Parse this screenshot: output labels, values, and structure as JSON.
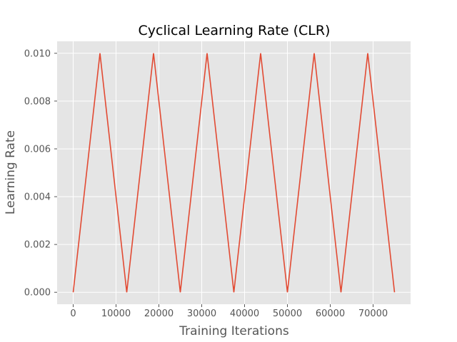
{
  "chart_data": {
    "type": "line",
    "title": "Cyclical Learning Rate (CLR)",
    "xlabel": "Training Iterations",
    "ylabel": "Learning Rate",
    "xlim": [
      -3750,
      78750
    ],
    "ylim": [
      -0.0005,
      0.0105
    ],
    "grid": true,
    "background": "#e5e5e5",
    "grid_color": "#ffffff",
    "xticks": [
      0,
      10000,
      20000,
      30000,
      40000,
      50000,
      60000,
      70000
    ],
    "xtick_labels": [
      "0",
      "10000",
      "20000",
      "30000",
      "40000",
      "50000",
      "60000",
      "70000"
    ],
    "yticks": [
      0.0,
      0.002,
      0.004,
      0.006,
      0.008,
      0.01
    ],
    "ytick_labels": [
      "0.000",
      "0.002",
      "0.004",
      "0.006",
      "0.008",
      "0.010"
    ],
    "series": [
      {
        "color": "#e24a33",
        "x": [
          0,
          6250,
          12500,
          18750,
          25000,
          31250,
          37500,
          43750,
          50000,
          56250,
          62500,
          68750,
          75000
        ],
        "y": [
          0.0,
          0.01,
          0.0,
          0.01,
          0.0,
          0.01,
          0.0,
          0.01,
          0.0,
          0.01,
          0.0,
          0.01,
          0.0
        ]
      }
    ]
  }
}
